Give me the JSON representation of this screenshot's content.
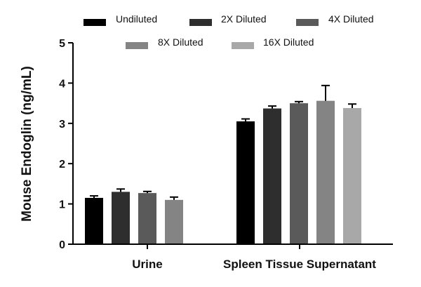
{
  "chart_data": {
    "type": "bar",
    "title": "",
    "xlabel": "",
    "ylabel": "Mouse Endoglin (ng/mL)",
    "ylim": [
      0,
      5
    ],
    "yticks": [
      0,
      1,
      2,
      3,
      4,
      5
    ],
    "grid": false,
    "legend_position": "top",
    "categories": [
      "Urine",
      "Spleen Tissue Supernatant"
    ],
    "series": [
      {
        "name": "Undiluted",
        "color": "#000000",
        "values": [
          1.15,
          3.05
        ],
        "errors": [
          0.05,
          0.06
        ]
      },
      {
        "name": "2X Diluted",
        "color": "#2e2e2e",
        "values": [
          1.3,
          3.37
        ],
        "errors": [
          0.07,
          0.06
        ]
      },
      {
        "name": "4X Diluted",
        "color": "#5a5a5a",
        "values": [
          1.27,
          3.5
        ],
        "errors": [
          0.04,
          0.04
        ]
      },
      {
        "name": "8X Diluted",
        "color": "#848484",
        "values": [
          1.1,
          3.56
        ],
        "errors": [
          0.07,
          0.38
        ]
      },
      {
        "name": "16X Diluted",
        "color": "#a8a8a8",
        "values": [
          null,
          3.38
        ],
        "errors": [
          null,
          0.1
        ]
      }
    ]
  }
}
